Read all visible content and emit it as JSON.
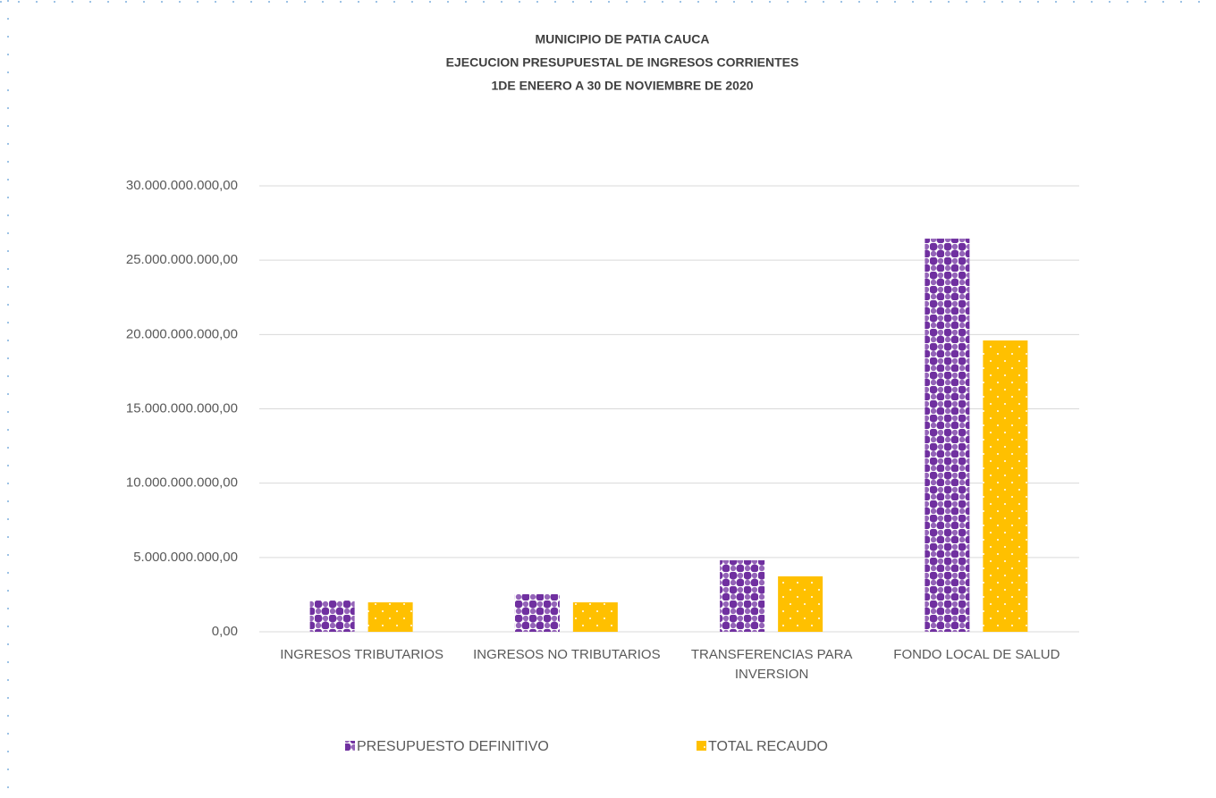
{
  "chart_data": {
    "type": "bar",
    "title": [
      "MUNICIPIO DE PATIA CAUCA",
      "EJECUCION PRESUPUESTAL DE INGRESOS CORRIENTES",
      "1DE ENEERO  A  30 DE NOVIEMBRE DE 2020"
    ],
    "categories": [
      "INGRESOS TRIBUTARIOS",
      "INGRESOS NO TRIBUTARIOS",
      "TRANSFERENCIAS PARA INVERSION",
      "FONDO LOCAL DE SALUD"
    ],
    "series": [
      {
        "name": "PRESUPUESTO DEFINITIVO",
        "color": "#7030a0",
        "values": [
          2100000000,
          2530000000,
          4810000000,
          26450000000
        ]
      },
      {
        "name": "TOTAL RECAUDO",
        "color": "#ffc000",
        "values": [
          1980000000,
          1980000000,
          3730000000,
          19600000000
        ]
      }
    ],
    "ylim": [
      0,
      30000000000
    ],
    "yticks": [
      {
        "value": 0,
        "label": "0,00"
      },
      {
        "value": 5000000000,
        "label": "5.000.000.000,00"
      },
      {
        "value": 10000000000,
        "label": "10.000.000.000,00"
      },
      {
        "value": 15000000000,
        "label": "15.000.000.000,00"
      },
      {
        "value": 20000000000,
        "label": "20.000.000.000,00"
      },
      {
        "value": 25000000000,
        "label": "25.000.000.000,00"
      },
      {
        "value": 30000000000,
        "label": "30.000.000.000,00"
      }
    ],
    "grid": true,
    "legend": "bottom"
  }
}
